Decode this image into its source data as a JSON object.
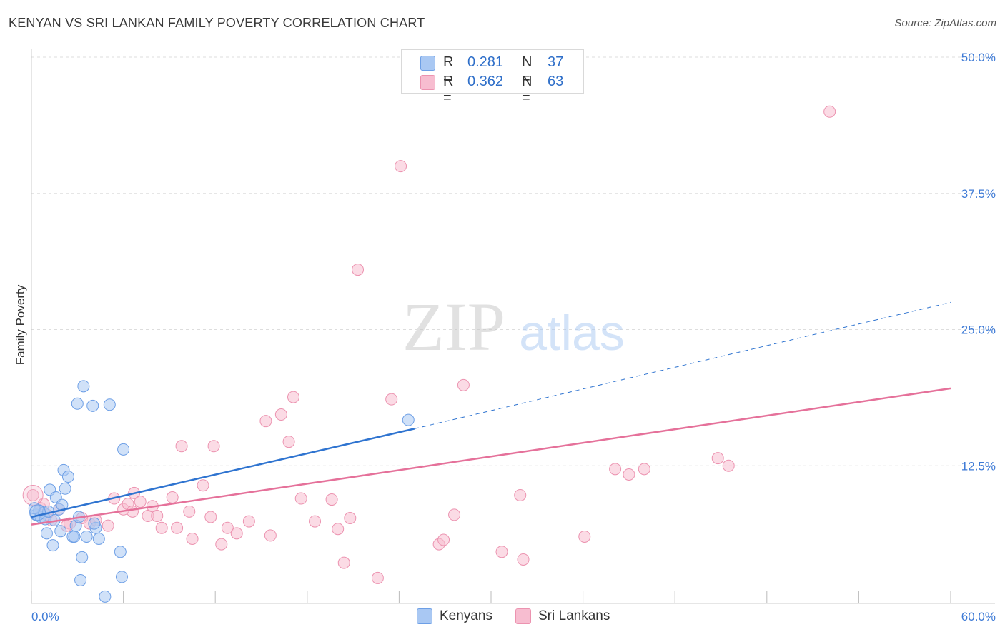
{
  "header": {
    "title": "KENYAN VS SRI LANKAN FAMILY POVERTY CORRELATION CHART",
    "source": "Source: ZipAtlas.com"
  },
  "colors": {
    "blue": "#6d9fe6",
    "blue_fill": "#a9c8f3",
    "blue_line": "#2f74d0",
    "pink": "#ec93b0",
    "pink_fill": "#f7bdd0",
    "pink_line": "#e5719a",
    "axis_text": "#3d7ad6",
    "grid": "#dddddd"
  },
  "legend": {
    "rows": [
      {
        "series": "Kenyans",
        "r_label": "R =",
        "r_value": "0.281",
        "n_label": "N =",
        "n_value": "37"
      },
      {
        "series": "Sri Lankans",
        "r_label": "R =",
        "r_value": "0.362",
        "n_label": "N =",
        "n_value": "63"
      }
    ]
  },
  "watermark": {
    "zip": "ZIP",
    "atlas": "atlas"
  },
  "chart_data": {
    "type": "scatter",
    "title": "KENYAN VS SRI LANKAN FAMILY POVERTY CORRELATION CHART",
    "xlabel": "",
    "ylabel": "Family Poverty",
    "xlim": [
      0,
      60
    ],
    "ylim": [
      0,
      50
    ],
    "x_tick_labels": [
      "0.0%",
      "60.0%"
    ],
    "y_ticks": [
      12.5,
      25.0,
      37.5,
      50.0
    ],
    "y_tick_labels": [
      "12.5%",
      "25.0%",
      "37.5%",
      "50.0%"
    ],
    "grid": true,
    "legend_position": "top-center",
    "series": [
      {
        "name": "Kenyans",
        "r": 0.281,
        "n": 37,
        "trend": {
          "x0": 0,
          "y0": 7.8,
          "x1": 25,
          "y1": 15.9,
          "dashed_to_x": 60,
          "dashed_to_y": 27.5
        },
        "points": [
          [
            0.3,
            8.0
          ],
          [
            0.5,
            8.4
          ],
          [
            0.6,
            7.8
          ],
          [
            0.8,
            8.2
          ],
          [
            0.9,
            7.6
          ],
          [
            1.0,
            6.3
          ],
          [
            1.2,
            10.3
          ],
          [
            1.4,
            5.2
          ],
          [
            1.5,
            7.5
          ],
          [
            1.6,
            9.6
          ],
          [
            1.8,
            8.5
          ],
          [
            1.9,
            6.5
          ],
          [
            2.0,
            8.9
          ],
          [
            2.1,
            12.1
          ],
          [
            2.2,
            10.4
          ],
          [
            2.4,
            11.5
          ],
          [
            2.7,
            6.0
          ],
          [
            2.8,
            6.0
          ],
          [
            2.9,
            7.0
          ],
          [
            3.0,
            18.2
          ],
          [
            3.1,
            7.8
          ],
          [
            3.3,
            4.1
          ],
          [
            3.4,
            19.8
          ],
          [
            3.6,
            6.0
          ],
          [
            4.0,
            18.0
          ],
          [
            4.2,
            6.8
          ],
          [
            4.4,
            5.8
          ],
          [
            4.8,
            0.5
          ],
          [
            5.1,
            18.1
          ],
          [
            5.8,
            4.6
          ],
          [
            5.9,
            2.3
          ],
          [
            6.0,
            14.0
          ],
          [
            3.2,
            2.0
          ],
          [
            0.2,
            8.6
          ],
          [
            1.1,
            8.3
          ],
          [
            4.1,
            7.2
          ],
          [
            24.6,
            16.7
          ]
        ]
      },
      {
        "name": "Sri Lankans",
        "r": 0.362,
        "n": 63,
        "trend": {
          "x0": 0,
          "y0": 7.1,
          "x1": 60,
          "y1": 19.6
        },
        "points": [
          [
            0.1,
            9.8
          ],
          [
            0.6,
            8.6
          ],
          [
            0.8,
            9.0
          ],
          [
            1.3,
            7.5
          ],
          [
            1.8,
            8.5
          ],
          [
            2.5,
            7.2
          ],
          [
            3.3,
            7.7
          ],
          [
            3.8,
            7.2
          ],
          [
            4.2,
            7.5
          ],
          [
            5.4,
            9.5
          ],
          [
            6.0,
            8.5
          ],
          [
            6.3,
            9.0
          ],
          [
            6.6,
            8.3
          ],
          [
            6.7,
            10.0
          ],
          [
            7.1,
            9.2
          ],
          [
            7.6,
            7.9
          ],
          [
            7.9,
            8.8
          ],
          [
            8.2,
            7.9
          ],
          [
            8.5,
            6.8
          ],
          [
            9.2,
            9.6
          ],
          [
            9.5,
            6.8
          ],
          [
            9.8,
            14.3
          ],
          [
            10.3,
            8.3
          ],
          [
            10.5,
            5.8
          ],
          [
            11.2,
            10.7
          ],
          [
            11.7,
            7.8
          ],
          [
            11.9,
            14.3
          ],
          [
            12.4,
            5.3
          ],
          [
            12.8,
            6.8
          ],
          [
            13.4,
            6.3
          ],
          [
            14.2,
            7.4
          ],
          [
            15.3,
            16.6
          ],
          [
            15.6,
            6.1
          ],
          [
            16.3,
            17.2
          ],
          [
            16.8,
            14.7
          ],
          [
            17.1,
            18.8
          ],
          [
            17.6,
            9.5
          ],
          [
            18.5,
            7.4
          ],
          [
            19.6,
            9.4
          ],
          [
            20.0,
            6.7
          ],
          [
            20.4,
            3.6
          ],
          [
            20.8,
            7.7
          ],
          [
            21.3,
            30.5
          ],
          [
            22.6,
            2.2
          ],
          [
            23.5,
            18.6
          ],
          [
            24.1,
            40.0
          ],
          [
            26.6,
            5.3
          ],
          [
            26.9,
            5.7
          ],
          [
            27.6,
            8.0
          ],
          [
            28.2,
            19.9
          ],
          [
            30.7,
            4.6
          ],
          [
            31.9,
            9.8
          ],
          [
            32.1,
            3.9
          ],
          [
            36.1,
            6.0
          ],
          [
            38.1,
            12.2
          ],
          [
            39.0,
            11.7
          ],
          [
            40.0,
            12.2
          ],
          [
            44.8,
            13.2
          ],
          [
            45.5,
            12.5
          ],
          [
            52.1,
            45.0
          ],
          [
            1.0,
            8.0
          ],
          [
            2.3,
            7.0
          ],
          [
            5.0,
            7.0
          ]
        ]
      }
    ]
  },
  "bottom_legend": [
    {
      "label": "Kenyans"
    },
    {
      "label": "Sri Lankans"
    }
  ]
}
